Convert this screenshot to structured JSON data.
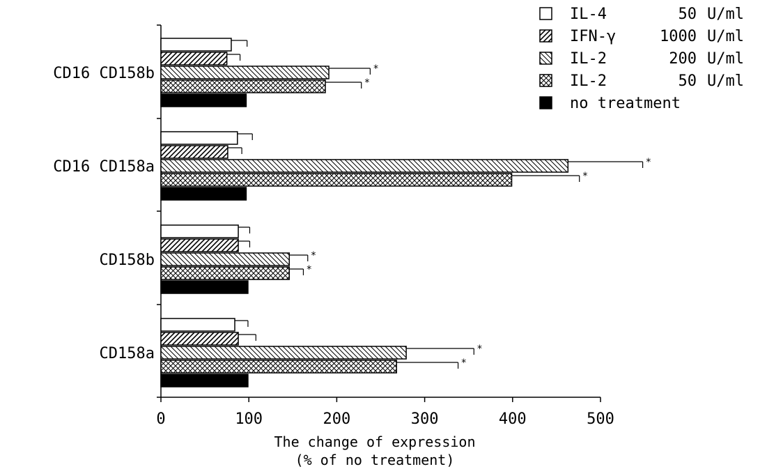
{
  "chart_data": {
    "type": "bar",
    "orientation": "horizontal",
    "title": "",
    "xlabel": "The change  of  expression",
    "xlabel_line2": "(% of no treatment)",
    "ylabel": "",
    "xlim": [
      0,
      500
    ],
    "x_ticks": [
      "0",
      "100",
      "200",
      "300",
      "400",
      "500"
    ],
    "categories": [
      "CD16 CD158b",
      "CD16 CD158a",
      "CD158b",
      "CD158a"
    ],
    "legend_position": "top-right",
    "grid": false,
    "series": [
      {
        "name": "IL-4",
        "dose": "50",
        "unit": "U/ml",
        "pattern": "open",
        "values": [
          80,
          87,
          88,
          84
        ],
        "errors": [
          18,
          17,
          13,
          15
        ],
        "significant": [
          false,
          false,
          false,
          false
        ]
      },
      {
        "name": "IFN-γ",
        "dose": "1000",
        "unit": "U/ml",
        "pattern": "hatch-up",
        "values": [
          75,
          76,
          88,
          88
        ],
        "errors": [
          15,
          16,
          13,
          20
        ],
        "significant": [
          false,
          false,
          false,
          false
        ]
      },
      {
        "name": "IL-2",
        "dose": "200",
        "unit": "U/ml",
        "pattern": "hatch-down",
        "values": [
          191,
          463,
          146,
          279
        ],
        "errors": [
          47,
          85,
          21,
          77
        ],
        "significant": [
          true,
          true,
          true,
          true
        ]
      },
      {
        "name": "IL-2",
        "dose": "50",
        "unit": "U/ml",
        "pattern": "crosshatch",
        "values": [
          187,
          399,
          146,
          268
        ],
        "errors": [
          41,
          77,
          16,
          70
        ],
        "significant": [
          true,
          true,
          true,
          true
        ]
      },
      {
        "name": "no treatment",
        "dose": "",
        "unit": "",
        "pattern": "solid",
        "values": [
          97,
          97,
          99,
          99
        ],
        "errors": [
          0,
          0,
          0,
          0
        ],
        "significant": [
          false,
          false,
          false,
          false
        ]
      }
    ],
    "significance_marker": "*"
  }
}
